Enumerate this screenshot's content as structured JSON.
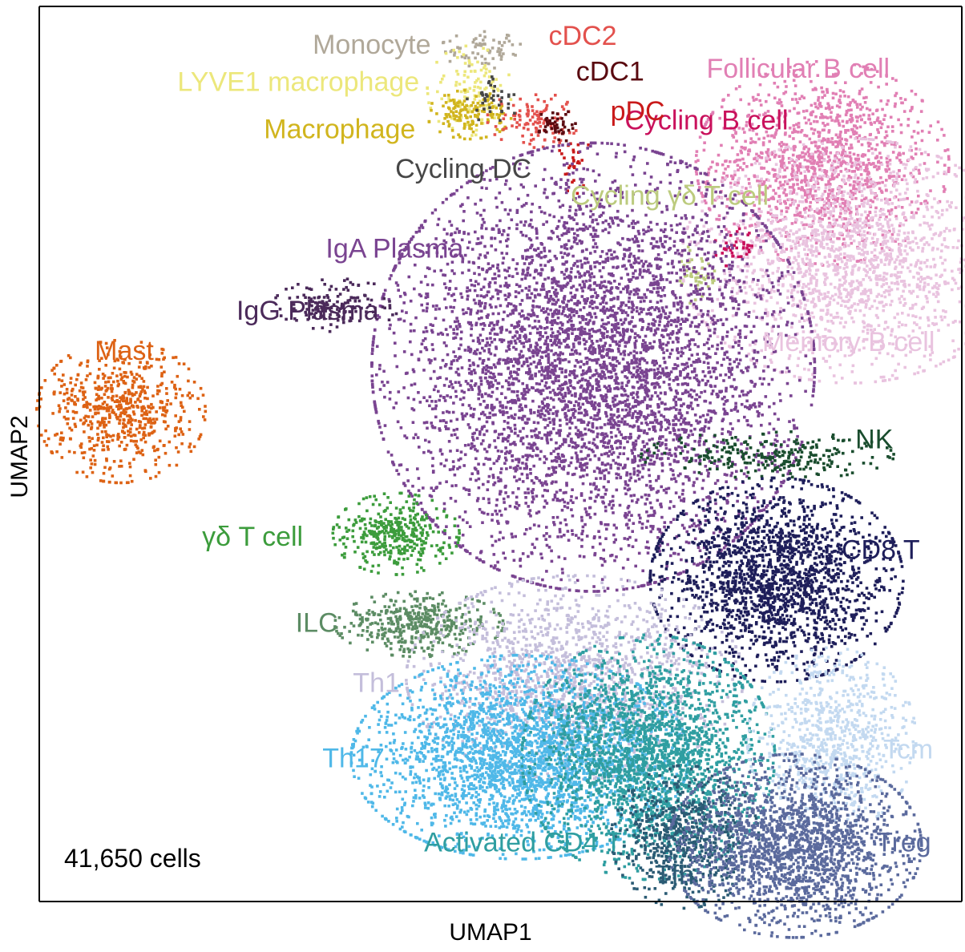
{
  "chart_data": {
    "type": "scatter",
    "title": "",
    "xlabel": "UMAP1",
    "ylabel": "UMAP2",
    "xlim": [
      0,
      100
    ],
    "ylim": [
      0,
      100
    ],
    "grid": false,
    "legend": "none",
    "annotation": "41,650 cells",
    "clusters": [
      {
        "name": "Follicular B cell",
        "color": "#e17fb4",
        "center": [
          85,
          83
        ],
        "spread": [
          6,
          5
        ],
        "n": 1300,
        "label": [
          82.5,
          93.3
        ]
      },
      {
        "name": "Memory B cell",
        "color": "#e9c3df",
        "center": [
          88,
          72
        ],
        "spread": [
          8,
          6
        ],
        "n": 1700,
        "label": [
          88,
          62.5
        ]
      },
      {
        "name": "Cycling B cell",
        "color": "#c9115c",
        "center": [
          75.5,
          73.5
        ],
        "spread": [
          1,
          1
        ],
        "n": 35,
        "label": [
          72.5,
          87.5
        ]
      },
      {
        "name": "Monocyte",
        "color": "#b0a899",
        "center": [
          48.5,
          95.8
        ],
        "spread": [
          2.3,
          0.9
        ],
        "n": 70,
        "label": [
          36,
          96
        ]
      },
      {
        "name": "LYVE1 macrophage",
        "color": "#ece77b",
        "center": [
          46.5,
          91.2
        ],
        "spread": [
          2,
          2.2
        ],
        "n": 120,
        "label": [
          28,
          91.8
        ]
      },
      {
        "name": "Macrophage",
        "color": "#d1b51e",
        "center": [
          46.5,
          88.5
        ],
        "spread": [
          2,
          1.2
        ],
        "n": 140,
        "label": [
          32.5,
          86.5
        ]
      },
      {
        "name": "cDC2",
        "color": "#e3514d",
        "center": [
          53.5,
          88
        ],
        "spread": [
          2.2,
          1.4
        ],
        "n": 110,
        "label": [
          59,
          97
        ]
      },
      {
        "name": "cDC1",
        "color": "#5a0a10",
        "center": [
          56,
          87.3
        ],
        "spread": [
          0.9,
          0.9
        ],
        "n": 45,
        "label": [
          62,
          93
        ]
      },
      {
        "name": "pDC",
        "color": "#c91a1a",
        "center": [
          58,
          83
        ],
        "spread": [
          0.8,
          1.5
        ],
        "n": 30,
        "label": [
          65,
          88.5
        ]
      },
      {
        "name": "Cycling DC",
        "color": "#474747",
        "center": [
          49,
          90
        ],
        "spread": [
          1.2,
          1.2
        ],
        "n": 40,
        "label": [
          46,
          82
        ]
      },
      {
        "name": "Cycling γδ T cell",
        "color": "#bccb7e",
        "center": [
          71.5,
          70.5
        ],
        "spread": [
          0.9,
          1.6
        ],
        "n": 45,
        "label": [
          68.5,
          79
        ]
      },
      {
        "name": "IgA Plasma",
        "color": "#7a4491",
        "center": [
          60,
          60
        ],
        "spread": [
          10.5,
          11
        ],
        "n": 5200,
        "label": [
          38.5,
          73
        ]
      },
      {
        "name": "IgG Plasma",
        "color": "#4b2a5a",
        "center": [
          32,
          67
        ],
        "spread": [
          3,
          1.3
        ],
        "n": 160,
        "label": [
          29,
          66
        ]
      },
      {
        "name": "Mast",
        "color": "#dd6214",
        "center": [
          8.5,
          55
        ],
        "spread": [
          4,
          3.5
        ],
        "n": 650,
        "label": [
          9,
          61.5
        ]
      },
      {
        "name": "γδ T cell",
        "color": "#3c9c3c",
        "center": [
          38.5,
          41.2
        ],
        "spread": [
          3,
          2
        ],
        "n": 380,
        "label": [
          23,
          40.5
        ]
      },
      {
        "name": "ILC",
        "color": "#5c8c64",
        "center": [
          41,
          31
        ],
        "spread": [
          4,
          1.6
        ],
        "n": 420,
        "label": [
          30,
          30.8
        ]
      },
      {
        "name": "NK",
        "color": "#1a4d2e",
        "center": [
          79,
          50
        ],
        "spread": [
          6,
          1.2
        ],
        "n": 260,
        "label": [
          90.8,
          51.5
        ]
      },
      {
        "name": "CD8 T",
        "color": "#1e1e5a",
        "center": [
          80,
          36
        ],
        "spread": [
          6,
          5
        ],
        "n": 1900,
        "label": [
          91.5,
          39
        ]
      },
      {
        "name": "Th1",
        "color": "#c4bedb",
        "center": [
          58,
          25
        ],
        "spread": [
          8,
          5
        ],
        "n": 1500,
        "label": [
          36.5,
          24
        ]
      },
      {
        "name": "Th17",
        "color": "#4fb8e8",
        "center": [
          52,
          16
        ],
        "spread": [
          8,
          5
        ],
        "n": 2600,
        "label": [
          34,
          15.5
        ]
      },
      {
        "name": "Activated CD4 T",
        "color": "#2f9ea1",
        "center": [
          66,
          16
        ],
        "spread": [
          6,
          6
        ],
        "n": 2200,
        "label": [
          52.5,
          6
        ]
      },
      {
        "name": "Tfh",
        "color": "#2b5b74",
        "center": [
          70,
          7
        ],
        "spread": [
          3.5,
          3.5
        ],
        "n": 650,
        "label": [
          69,
          2.3
        ]
      },
      {
        "name": "Tcm",
        "color": "#c3d9f0",
        "center": [
          86,
          18
        ],
        "spread": [
          4,
          4.5
        ],
        "n": 800,
        "label": [
          94.5,
          16.5
        ]
      },
      {
        "name": "Treg",
        "color": "#5b6a9d",
        "center": [
          82,
          6
        ],
        "spread": [
          6,
          4.5
        ],
        "n": 1900,
        "label": [
          94,
          6
        ]
      }
    ]
  }
}
